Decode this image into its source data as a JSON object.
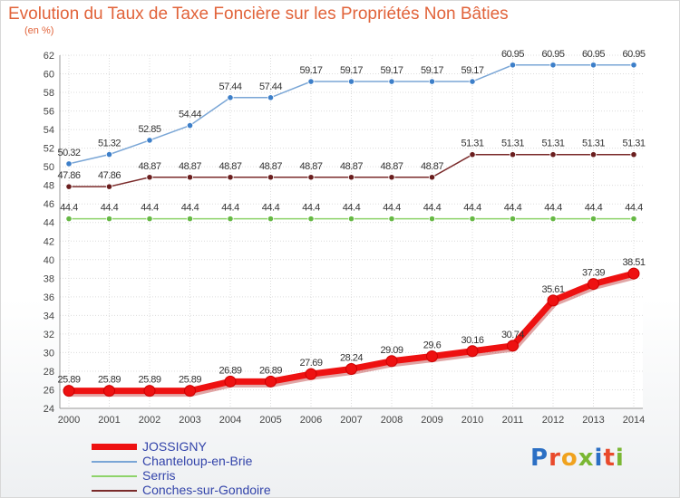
{
  "title": "Evolution du Taux de Taxe Foncière sur les Propriétés Non Bâties",
  "unit": "(en %)",
  "logo": {
    "text": "Proxiti",
    "colors": [
      "#2b6fc4",
      "#e94a2c",
      "#f0a21e",
      "#7ab733",
      "#2b6fc4",
      "#e94a2c",
      "#7ab733"
    ]
  },
  "chart_data": {
    "type": "line",
    "x": [
      2000,
      2001,
      2002,
      2003,
      2004,
      2005,
      2006,
      2007,
      2008,
      2009,
      2010,
      2011,
      2012,
      2013,
      2014
    ],
    "ylim": [
      24,
      62
    ],
    "yticks": [
      24,
      26,
      28,
      30,
      32,
      34,
      36,
      38,
      40,
      42,
      44,
      46,
      48,
      50,
      52,
      54,
      56,
      58,
      60,
      62
    ],
    "grid": true,
    "legend": "bottom-left",
    "series": [
      {
        "name": "JOSSIGNY",
        "color": "#ee1111",
        "bold": true,
        "values": [
          25.89,
          25.89,
          25.89,
          25.89,
          26.89,
          26.89,
          27.69,
          28.24,
          29.09,
          29.6,
          30.16,
          30.74,
          35.61,
          37.39,
          38.51
        ],
        "labels": [
          "25.89",
          "25.89",
          "25.89",
          "25.89",
          "26.89",
          "26.89",
          "27.69",
          "28.24",
          "29.09",
          "29.6",
          "30.16",
          "30.74",
          "35.61",
          "37.39",
          "38.51"
        ]
      },
      {
        "name": "Chanteloup-en-Brie",
        "color": "#7aa6d6",
        "marker": "#3d7fc9",
        "values": [
          50.32,
          51.32,
          52.85,
          54.44,
          57.44,
          57.44,
          59.17,
          59.17,
          59.17,
          59.17,
          59.17,
          60.95,
          60.95,
          60.95,
          60.95
        ],
        "labels": [
          "50.32",
          "51.32",
          "52.85",
          "54.44",
          "57.44",
          "57.44",
          "59.17",
          "59.17",
          "59.17",
          "59.17",
          "59.17",
          "60.95",
          "60.95",
          "60.95",
          "60.95"
        ]
      },
      {
        "name": "Serris",
        "color": "#8ed36a",
        "marker": "#66b844",
        "values": [
          44.4,
          44.4,
          44.4,
          44.4,
          44.4,
          44.4,
          44.4,
          44.4,
          44.4,
          44.4,
          44.4,
          44.4,
          44.4,
          44.4,
          44.4
        ],
        "labels": [
          "44.4",
          "44.4",
          "44.4",
          "44.4",
          "44.4",
          "44.4",
          "44.4",
          "44.4",
          "44.4",
          "44.4",
          "44.4",
          "44.4",
          "44.4",
          "44.4",
          "44.4"
        ]
      },
      {
        "name": "Conches-sur-Gondoire",
        "color": "#7a2a2a",
        "marker": "#6a1e1e",
        "values": [
          47.86,
          47.86,
          48.87,
          48.87,
          48.87,
          48.87,
          48.87,
          48.87,
          48.87,
          48.87,
          51.31,
          51.31,
          51.31,
          51.31,
          51.31
        ],
        "labels": [
          "47.86",
          "47.86",
          "48.87",
          "48.87",
          "48.87",
          "48.87",
          "48.87",
          "48.87",
          "48.87",
          "48.87",
          "51.31",
          "51.31",
          "51.31",
          "51.31",
          "51.31"
        ]
      }
    ]
  }
}
